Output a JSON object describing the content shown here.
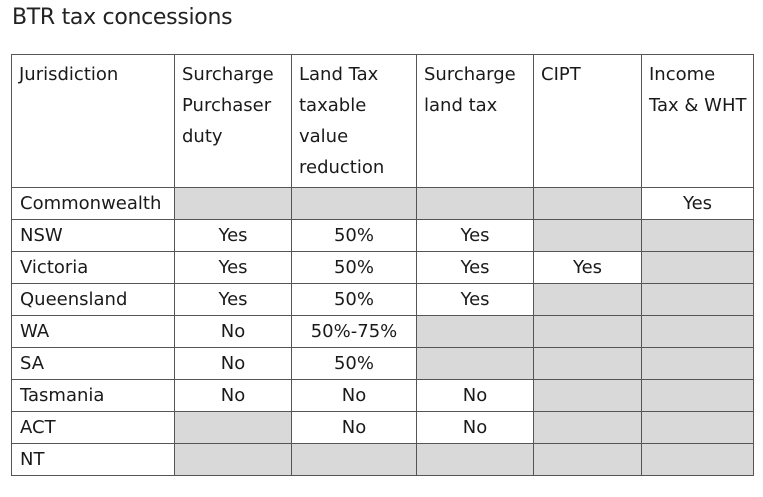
{
  "title": "BTR tax concessions",
  "columns": [
    "Jurisdiction",
    "Surcharge Purchaser duty",
    "Land Tax taxable value reduction",
    "Surcharge land tax",
    "CIPT",
    "Income Tax & WHT"
  ],
  "rows": [
    [
      "Commonwealth",
      "",
      "",
      "",
      "",
      "Yes"
    ],
    [
      "NSW",
      "Yes",
      "50%",
      "Yes",
      "",
      ""
    ],
    [
      "Victoria",
      "Yes",
      "50%",
      "Yes",
      "Yes",
      ""
    ],
    [
      "Queensland",
      "Yes",
      "50%",
      "Yes",
      "",
      ""
    ],
    [
      "WA",
      "No",
      "50%-75%",
      "",
      "",
      ""
    ],
    [
      "SA",
      "No",
      "50%",
      "",
      "",
      ""
    ],
    [
      "Tasmania",
      "No",
      "No",
      "No",
      "",
      ""
    ],
    [
      "ACT",
      "",
      "No",
      "No",
      "",
      ""
    ],
    [
      "NT",
      "",
      "",
      "",
      "",
      ""
    ]
  ],
  "colors": {
    "empty_cell": "#d9d9d9",
    "border": "#555555"
  }
}
